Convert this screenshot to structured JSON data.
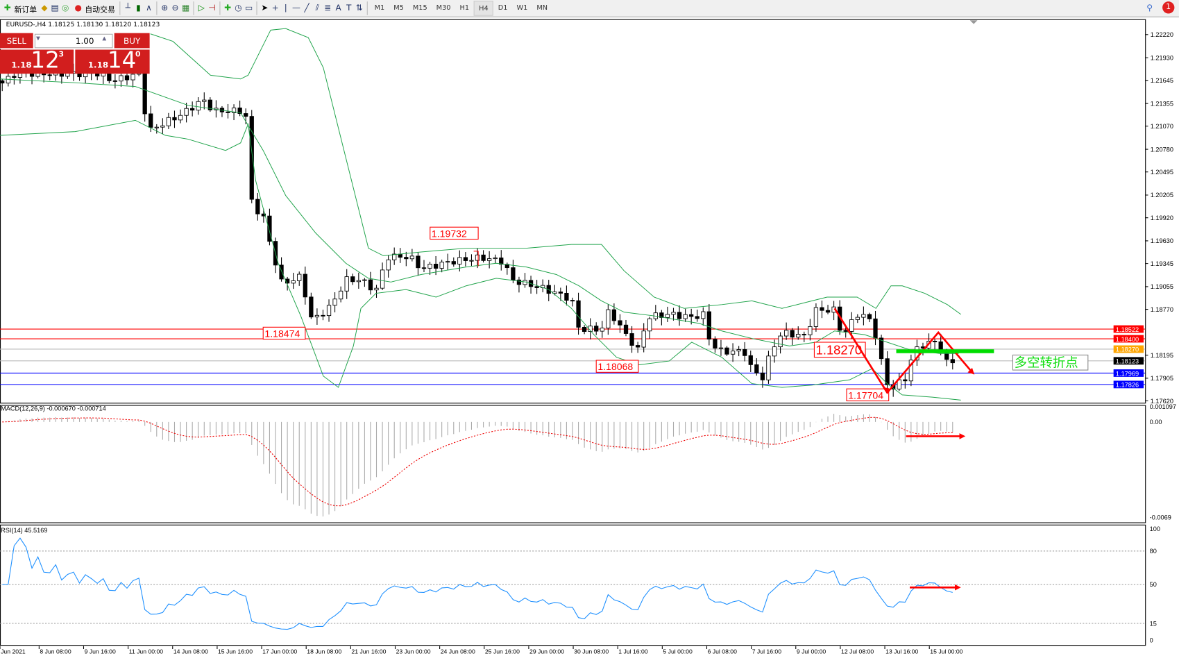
{
  "toolbar": {
    "new_order": "新订单",
    "auto_trading": "自动交易",
    "timeframes": [
      "M1",
      "M5",
      "M15",
      "M30",
      "H1",
      "H4",
      "D1",
      "W1",
      "MN"
    ],
    "active_timeframe": "H4",
    "notification_count": "1"
  },
  "chart": {
    "info": "EURUSD-,H4  1.18125 1.18130 1.18120 1.18123",
    "order_panel": {
      "sell": "SELL",
      "buy": "BUY",
      "lots": "1.00",
      "sell_prefix": "1.18",
      "sell_big": "12",
      "sell_sup": "3",
      "buy_prefix": "1.18",
      "buy_big": "14",
      "buy_sup": "0",
      "color": "#d21e1e"
    },
    "price_axis": [
      "1.22220",
      "1.21930",
      "1.21645",
      "1.21355",
      "1.21070",
      "1.20780",
      "1.20495",
      "1.20205",
      "1.19920",
      "1.19630",
      "1.19345",
      "1.19055",
      "1.18770",
      "1.18195",
      "1.17905",
      "1.17620"
    ],
    "level_labels": [
      {
        "value": "1.18522",
        "color": "#ff0000"
      },
      {
        "value": "1.18400",
        "color": "#ff0000"
      },
      {
        "value": "1.18270",
        "color": "#ffa500"
      },
      {
        "value": "1.18123",
        "color": "#000000"
      },
      {
        "value": "1.17969",
        "color": "#0000ff"
      },
      {
        "value": "1.17826",
        "color": "#0000ff"
      }
    ],
    "annotations": [
      "1.19732",
      "1.18474",
      "1.18068",
      "1.18270",
      "1.17704"
    ],
    "note": "多空转折点",
    "time_axis": [
      "Jun 2021",
      "8 Jun 08:00",
      "9 Jun 16:00",
      "11 Jun 00:00",
      "14 Jun 08:00",
      "15 Jun 16:00",
      "17 Jun 00:00",
      "18 Jun 08:00",
      "21 Jun 16:00",
      "23 Jun 00:00",
      "24 Jun 08:00",
      "25 Jun 16:00",
      "29 Jun 00:00",
      "30 Jun 08:00",
      "1 Jul 16:00",
      "5 Jul 00:00",
      "6 Jul 08:00",
      "7 Jul 16:00",
      "9 Jul 00:00",
      "12 Jul 08:00",
      "13 Jul 16:00",
      "15 Jul 00:00"
    ],
    "price_waypoints": [
      1.2159,
      1.2173,
      1.2173,
      1.2164,
      1.2173,
      1.2135,
      1.2102,
      1.2112,
      1.2121,
      1.214,
      1.2126,
      1.2126,
      1.2116,
      1.2008,
      1.1994,
      1.1956,
      1.1909,
      1.1918,
      1.1862,
      1.1881,
      1.1914,
      1.1914,
      1.19,
      1.1943,
      1.1943,
      1.1928,
      1.1937,
      1.1942,
      1.1937,
      1.1914,
      1.1904,
      1.189,
      1.1852,
      1.1852,
      1.1876,
      1.1848,
      1.1824,
      1.1867,
      1.1871,
      1.1867,
      1.1871,
      1.1834,
      1.1824,
      1.1824,
      1.1801,
      1.1791,
      1.1824,
      1.1848,
      1.1843,
      1.1876,
      1.1876,
      1.1843,
      1.1871,
      1.1867,
      1.1843,
      1.1786,
      1.1777,
      1.1791,
      1.1824,
      1.1834,
      1.1836,
      1.181,
      1.1812
    ]
  },
  "macd": {
    "label": "MACD(12,26,9) -0.000670 -0.000714",
    "axis": [
      "0.001097",
      "0.00",
      "-0.0069"
    ]
  },
  "rsi": {
    "label": "RSI(14) 45.5169",
    "axis": [
      "100",
      "80",
      "50",
      "15",
      "0"
    ]
  }
}
